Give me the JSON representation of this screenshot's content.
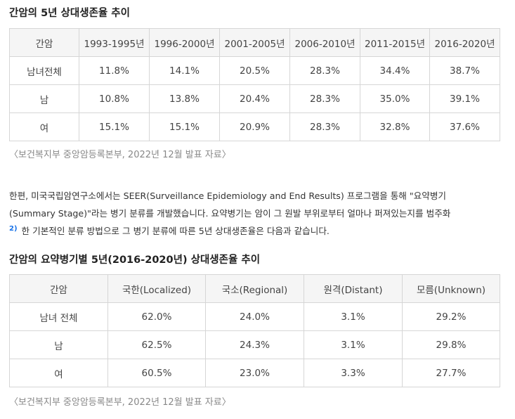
{
  "section1": {
    "title": "간암의 5년 상대생존율 추이",
    "headers": [
      "간암",
      "1993-1995년",
      "1996-2000년",
      "2001-2005년",
      "2006-2010년",
      "2011-2015년",
      "2016-2020년"
    ],
    "rows": [
      [
        "남녀전체",
        "11.8%",
        "14.1%",
        "20.5%",
        "28.3%",
        "34.4%",
        "38.7%"
      ],
      [
        "남",
        "10.8%",
        "13.8%",
        "20.4%",
        "28.3%",
        "35.0%",
        "39.1%"
      ],
      [
        "여",
        "15.1%",
        "15.1%",
        "20.9%",
        "28.3%",
        "32.8%",
        "37.6%"
      ]
    ],
    "source": "〈보건복지부 중앙암등록본부, 2022년 12월 발표 자료〉"
  },
  "paragraph": {
    "line1": "한편, 미국국립암연구소에서는 SEER(Surveillance Epidemiology and End Results) 프로그램을 통해 \"요약병기",
    "line2": "(Summary Stage)\"라는 병기 분류를 개발했습니다. 요약병기는 암이 그 원발 부위로부터 얼마나 퍼져있는지를 범주화",
    "footnote": "2)",
    "line3": "한 기본적인 분류 방법으로 그 병기 분류에 따른 5년 상대생존율은 다음과 같습니다."
  },
  "section2": {
    "title": "간암의 요약병기별 5년(2016-2020년) 상대생존율 추이",
    "headers": [
      "간암",
      "국한(Localized)",
      "국소(Regional)",
      "원격(Distant)",
      "모름(Unknown)"
    ],
    "rows": [
      [
        "남녀 전체",
        "62.0%",
        "24.0%",
        "3.1%",
        "29.2%"
      ],
      [
        "남",
        "62.5%",
        "24.3%",
        "3.1%",
        "29.8%"
      ],
      [
        "여",
        "60.5%",
        "23.0%",
        "3.3%",
        "27.7%"
      ]
    ],
    "source": "〈보건복지부 중앙암등록본부, 2022년 12월 발표 자료〉"
  }
}
